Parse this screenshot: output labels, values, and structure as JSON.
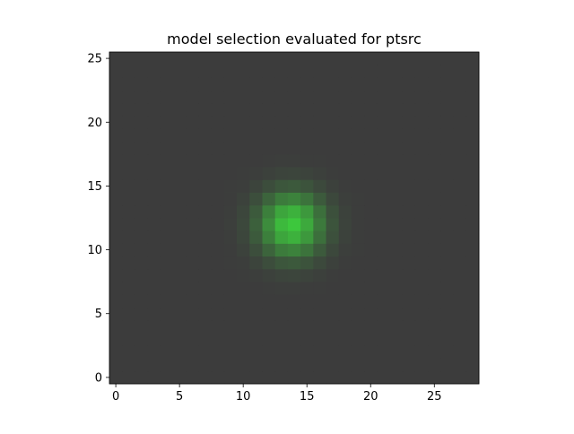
{
  "chart_data": {
    "type": "heatmap",
    "title": "model selection evaluated for ptsrc",
    "xlabel": "",
    "ylabel": "",
    "xlim": [
      -0.5,
      28.5
    ],
    "ylim": [
      -0.5,
      25.5
    ],
    "xticks": [
      0,
      5,
      10,
      15,
      20,
      25
    ],
    "yticks": [
      0,
      5,
      10,
      15,
      20,
      25
    ],
    "grid": false,
    "legend": "none",
    "grid_size": {
      "cols": 29,
      "rows": 26
    },
    "background_color": "#3c3c3c",
    "peak_color": "#3dc83d",
    "source": {
      "x": 13.8,
      "y": 12.0,
      "sigma": 1.7,
      "amplitude": 1.0
    }
  }
}
